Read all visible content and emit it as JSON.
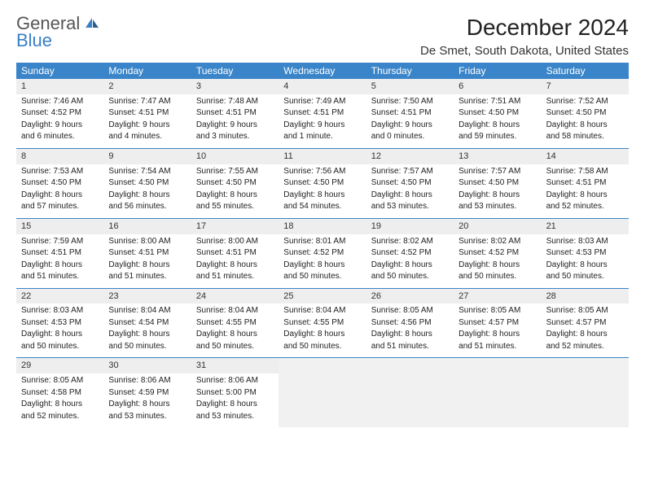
{
  "logo": {
    "general": "General",
    "blue": "Blue"
  },
  "title": "December 2024",
  "location": "De Smet, South Dakota, United States",
  "colors": {
    "header_bg": "#3a85c9",
    "header_text": "#ffffff",
    "daynum_bg": "#eeeeee",
    "border": "#3a85c9",
    "text": "#222222",
    "logo_gray": "#555555",
    "logo_blue": "#3a7fc4"
  },
  "day_names": [
    "Sunday",
    "Monday",
    "Tuesday",
    "Wednesday",
    "Thursday",
    "Friday",
    "Saturday"
  ],
  "weeks": [
    [
      {
        "n": "1",
        "sr": "Sunrise: 7:46 AM",
        "ss": "Sunset: 4:52 PM",
        "d1": "Daylight: 9 hours",
        "d2": "and 6 minutes."
      },
      {
        "n": "2",
        "sr": "Sunrise: 7:47 AM",
        "ss": "Sunset: 4:51 PM",
        "d1": "Daylight: 9 hours",
        "d2": "and 4 minutes."
      },
      {
        "n": "3",
        "sr": "Sunrise: 7:48 AM",
        "ss": "Sunset: 4:51 PM",
        "d1": "Daylight: 9 hours",
        "d2": "and 3 minutes."
      },
      {
        "n": "4",
        "sr": "Sunrise: 7:49 AM",
        "ss": "Sunset: 4:51 PM",
        "d1": "Daylight: 9 hours",
        "d2": "and 1 minute."
      },
      {
        "n": "5",
        "sr": "Sunrise: 7:50 AM",
        "ss": "Sunset: 4:51 PM",
        "d1": "Daylight: 9 hours",
        "d2": "and 0 minutes."
      },
      {
        "n": "6",
        "sr": "Sunrise: 7:51 AM",
        "ss": "Sunset: 4:50 PM",
        "d1": "Daylight: 8 hours",
        "d2": "and 59 minutes."
      },
      {
        "n": "7",
        "sr": "Sunrise: 7:52 AM",
        "ss": "Sunset: 4:50 PM",
        "d1": "Daylight: 8 hours",
        "d2": "and 58 minutes."
      }
    ],
    [
      {
        "n": "8",
        "sr": "Sunrise: 7:53 AM",
        "ss": "Sunset: 4:50 PM",
        "d1": "Daylight: 8 hours",
        "d2": "and 57 minutes."
      },
      {
        "n": "9",
        "sr": "Sunrise: 7:54 AM",
        "ss": "Sunset: 4:50 PM",
        "d1": "Daylight: 8 hours",
        "d2": "and 56 minutes."
      },
      {
        "n": "10",
        "sr": "Sunrise: 7:55 AM",
        "ss": "Sunset: 4:50 PM",
        "d1": "Daylight: 8 hours",
        "d2": "and 55 minutes."
      },
      {
        "n": "11",
        "sr": "Sunrise: 7:56 AM",
        "ss": "Sunset: 4:50 PM",
        "d1": "Daylight: 8 hours",
        "d2": "and 54 minutes."
      },
      {
        "n": "12",
        "sr": "Sunrise: 7:57 AM",
        "ss": "Sunset: 4:50 PM",
        "d1": "Daylight: 8 hours",
        "d2": "and 53 minutes."
      },
      {
        "n": "13",
        "sr": "Sunrise: 7:57 AM",
        "ss": "Sunset: 4:50 PM",
        "d1": "Daylight: 8 hours",
        "d2": "and 53 minutes."
      },
      {
        "n": "14",
        "sr": "Sunrise: 7:58 AM",
        "ss": "Sunset: 4:51 PM",
        "d1": "Daylight: 8 hours",
        "d2": "and 52 minutes."
      }
    ],
    [
      {
        "n": "15",
        "sr": "Sunrise: 7:59 AM",
        "ss": "Sunset: 4:51 PM",
        "d1": "Daylight: 8 hours",
        "d2": "and 51 minutes."
      },
      {
        "n": "16",
        "sr": "Sunrise: 8:00 AM",
        "ss": "Sunset: 4:51 PM",
        "d1": "Daylight: 8 hours",
        "d2": "and 51 minutes."
      },
      {
        "n": "17",
        "sr": "Sunrise: 8:00 AM",
        "ss": "Sunset: 4:51 PM",
        "d1": "Daylight: 8 hours",
        "d2": "and 51 minutes."
      },
      {
        "n": "18",
        "sr": "Sunrise: 8:01 AM",
        "ss": "Sunset: 4:52 PM",
        "d1": "Daylight: 8 hours",
        "d2": "and 50 minutes."
      },
      {
        "n": "19",
        "sr": "Sunrise: 8:02 AM",
        "ss": "Sunset: 4:52 PM",
        "d1": "Daylight: 8 hours",
        "d2": "and 50 minutes."
      },
      {
        "n": "20",
        "sr": "Sunrise: 8:02 AM",
        "ss": "Sunset: 4:52 PM",
        "d1": "Daylight: 8 hours",
        "d2": "and 50 minutes."
      },
      {
        "n": "21",
        "sr": "Sunrise: 8:03 AM",
        "ss": "Sunset: 4:53 PM",
        "d1": "Daylight: 8 hours",
        "d2": "and 50 minutes."
      }
    ],
    [
      {
        "n": "22",
        "sr": "Sunrise: 8:03 AM",
        "ss": "Sunset: 4:53 PM",
        "d1": "Daylight: 8 hours",
        "d2": "and 50 minutes."
      },
      {
        "n": "23",
        "sr": "Sunrise: 8:04 AM",
        "ss": "Sunset: 4:54 PM",
        "d1": "Daylight: 8 hours",
        "d2": "and 50 minutes."
      },
      {
        "n": "24",
        "sr": "Sunrise: 8:04 AM",
        "ss": "Sunset: 4:55 PM",
        "d1": "Daylight: 8 hours",
        "d2": "and 50 minutes."
      },
      {
        "n": "25",
        "sr": "Sunrise: 8:04 AM",
        "ss": "Sunset: 4:55 PM",
        "d1": "Daylight: 8 hours",
        "d2": "and 50 minutes."
      },
      {
        "n": "26",
        "sr": "Sunrise: 8:05 AM",
        "ss": "Sunset: 4:56 PM",
        "d1": "Daylight: 8 hours",
        "d2": "and 51 minutes."
      },
      {
        "n": "27",
        "sr": "Sunrise: 8:05 AM",
        "ss": "Sunset: 4:57 PM",
        "d1": "Daylight: 8 hours",
        "d2": "and 51 minutes."
      },
      {
        "n": "28",
        "sr": "Sunrise: 8:05 AM",
        "ss": "Sunset: 4:57 PM",
        "d1": "Daylight: 8 hours",
        "d2": "and 52 minutes."
      }
    ],
    [
      {
        "n": "29",
        "sr": "Sunrise: 8:05 AM",
        "ss": "Sunset: 4:58 PM",
        "d1": "Daylight: 8 hours",
        "d2": "and 52 minutes."
      },
      {
        "n": "30",
        "sr": "Sunrise: 8:06 AM",
        "ss": "Sunset: 4:59 PM",
        "d1": "Daylight: 8 hours",
        "d2": "and 53 minutes."
      },
      {
        "n": "31",
        "sr": "Sunrise: 8:06 AM",
        "ss": "Sunset: 5:00 PM",
        "d1": "Daylight: 8 hours",
        "d2": "and 53 minutes."
      },
      null,
      null,
      null,
      null
    ]
  ]
}
